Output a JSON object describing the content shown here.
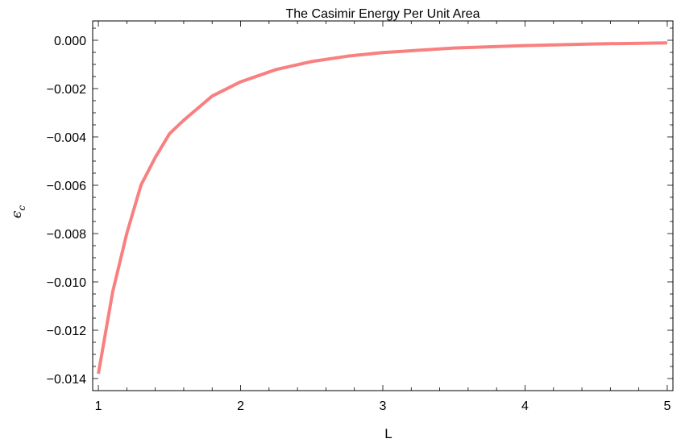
{
  "chart_data": {
    "type": "line",
    "title": "The Casimir Energy Per Unit Area",
    "xlabel": "L",
    "ylabel": "ϵ",
    "ylabel_subscript": "c",
    "xlim": [
      0.96,
      5.04
    ],
    "ylim": [
      -0.0145,
      0.0008
    ],
    "x_ticks": [
      1,
      2,
      3,
      4,
      5
    ],
    "x_tick_labels": [
      "1",
      "2",
      "3",
      "4",
      "5"
    ],
    "y_ticks": [
      0.0,
      -0.002,
      -0.004,
      -0.006,
      -0.008,
      -0.01,
      -0.012,
      -0.014
    ],
    "y_tick_labels": [
      "0.000",
      "−0.002",
      "−0.004",
      "−0.006",
      "−0.008",
      "−0.010",
      "−0.012",
      "−0.014"
    ],
    "grid": false,
    "series": [
      {
        "color": "#f88080",
        "x": [
          1.0,
          1.1,
          1.2,
          1.3,
          1.4,
          1.5,
          1.6,
          1.8,
          2.0,
          2.25,
          2.5,
          2.75,
          3.0,
          3.5,
          4.0,
          4.5,
          5.0
        ],
        "y": [
          -0.0138,
          -0.01043,
          -0.00799,
          -0.00599,
          -0.00485,
          -0.00387,
          -0.00331,
          -0.00231,
          -0.00172,
          -0.00121,
          -0.00088,
          -0.00066,
          -0.00051,
          -0.00032,
          -0.00022,
          -0.00015,
          -0.00011
        ]
      }
    ]
  }
}
